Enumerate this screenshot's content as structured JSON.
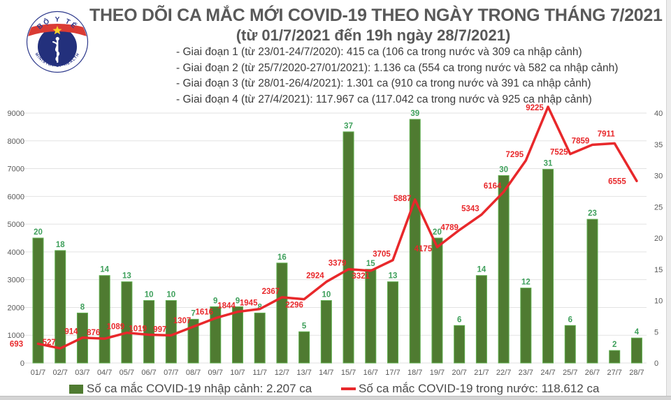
{
  "header": {
    "title": "THEO DÕI CA MẮC MỚI COVID-19 THEO NGÀY TRONG THÁNG 7/2021",
    "subtitle": "(từ 01/7/2021 đến 19h ngày 28/7/2021)",
    "phases": [
      "- Giai đoạn 1 (từ 23/01-24/7/2020): 415 ca (106 ca trong nước và 309 ca nhập cảnh)",
      "- Giai đoạn 2 (từ 25/7/2020-27/01/2021): 1.136 ca (554 ca trong nước và 582 ca nhập cảnh)",
      "- Giai đoạn 3 (từ 28/01-26/4/2021): 1.301 ca (910 ca trong nước và 391 ca nhập cảnh)",
      "- Giai đoạn 4 (từ 27/4/2021): 117.967 ca (117.042 ca trong nước và 925 ca nhập cảnh)"
    ],
    "logo": {
      "top_text": "BỘ Y TẾ",
      "bottom_text": "MINISTRY OF HEALTH"
    }
  },
  "chart_data": {
    "type": "bar+line",
    "categories": [
      "01/7",
      "02/7",
      "03/7",
      "04/7",
      "05/7",
      "06/7",
      "07/7",
      "08/7",
      "09/7",
      "10/7",
      "11/7",
      "12/7",
      "13/7",
      "14/7",
      "15/7",
      "16/7",
      "17/7",
      "18/7",
      "19/7",
      "20/7",
      "21/7",
      "22/7",
      "23/7",
      "24/7",
      "25/7",
      "26/7",
      "27/7",
      "28/7"
    ],
    "series": [
      {
        "name": "Số ca mắc COVID-19 nhập cảnh",
        "type": "bar",
        "axis": "right",
        "color": "#4f7b31",
        "edge_color": "#5fae4e",
        "label_color": "#3fa05c",
        "values": [
          20,
          18,
          8,
          14,
          13,
          10,
          10,
          7,
          9,
          9,
          8,
          16,
          5,
          10,
          37,
          15,
          13,
          39,
          20,
          6,
          14,
          30,
          12,
          31,
          6,
          23,
          2,
          4
        ]
      },
      {
        "name": "Số ca mắc COVID-19 trong nước",
        "type": "line",
        "axis": "left",
        "color": "#e8282b",
        "values": [
          693,
          527,
          914,
          876,
          1089,
          1019,
          997,
          1307,
          1616,
          1844,
          1945,
          2367,
          2296,
          2924,
          3379,
          3321,
          3705,
          5887,
          4175,
          4789,
          5343,
          6164,
          7295,
          9225,
          7525,
          7859,
          7911,
          6555
        ]
      }
    ],
    "left_axis": {
      "min": 0,
      "max": 9000,
      "step": 1000,
      "ticks": [
        "0",
        "1000",
        "2000",
        "3000",
        "4000",
        "5000",
        "6000",
        "7000",
        "8000",
        "9000"
      ]
    },
    "right_axis": {
      "min": 0,
      "max": 40,
      "step": 5,
      "ticks": [
        "0",
        "5",
        "10",
        "15",
        "20",
        "25",
        "30",
        "35",
        "40"
      ]
    },
    "grid": "horizontal",
    "legend_position": "bottom",
    "colors": {
      "grid": "#e2e2e2",
      "axis_text": "#595959"
    },
    "line_label_offsets": {
      "default": [
        -16,
        -5
      ],
      "0": [
        -31,
        4
      ],
      "12": [
        -14,
        12
      ],
      "15": [
        -14,
        11
      ],
      "17": [
        -18,
        2
      ],
      "18": [
        -20,
        6
      ],
      "19": [
        -14,
        0
      ],
      "23": [
        -19,
        5
      ],
      "24": [
        -16,
        1
      ],
      "25": [
        -17,
        -2
      ],
      "26": [
        -12,
        -10
      ],
      "27": [
        -28,
        4
      ]
    }
  },
  "legend": {
    "bar_label": "Số ca mắc COVID-19 nhập cảnh: 2.207 ca",
    "line_label": "Số ca mắc COVID-19 trong nước: 118.612 ca"
  },
  "colors": {
    "title": "#595959",
    "body_text": "#3c3c3c",
    "bar": "#4f7b31",
    "line_red": "#e8282b",
    "logo_navy": "#23307c",
    "logo_red": "#da3b34",
    "logo_star": "#f8d22a"
  }
}
